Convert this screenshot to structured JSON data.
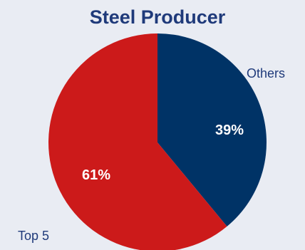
{
  "chart_data": {
    "type": "pie",
    "title": "Steel Producer",
    "slices": [
      {
        "label": "Others",
        "value": 39,
        "display": "39%",
        "color": "#003366"
      },
      {
        "label": "Top 5",
        "value": 61,
        "display": "61%",
        "color": "#cc1a1a"
      }
    ],
    "start_angle_deg": 0,
    "direction": "clockwise",
    "label_color": "#ffffff",
    "title_color": "#1f3a7a",
    "category_label_color": "#1f3a7a"
  }
}
